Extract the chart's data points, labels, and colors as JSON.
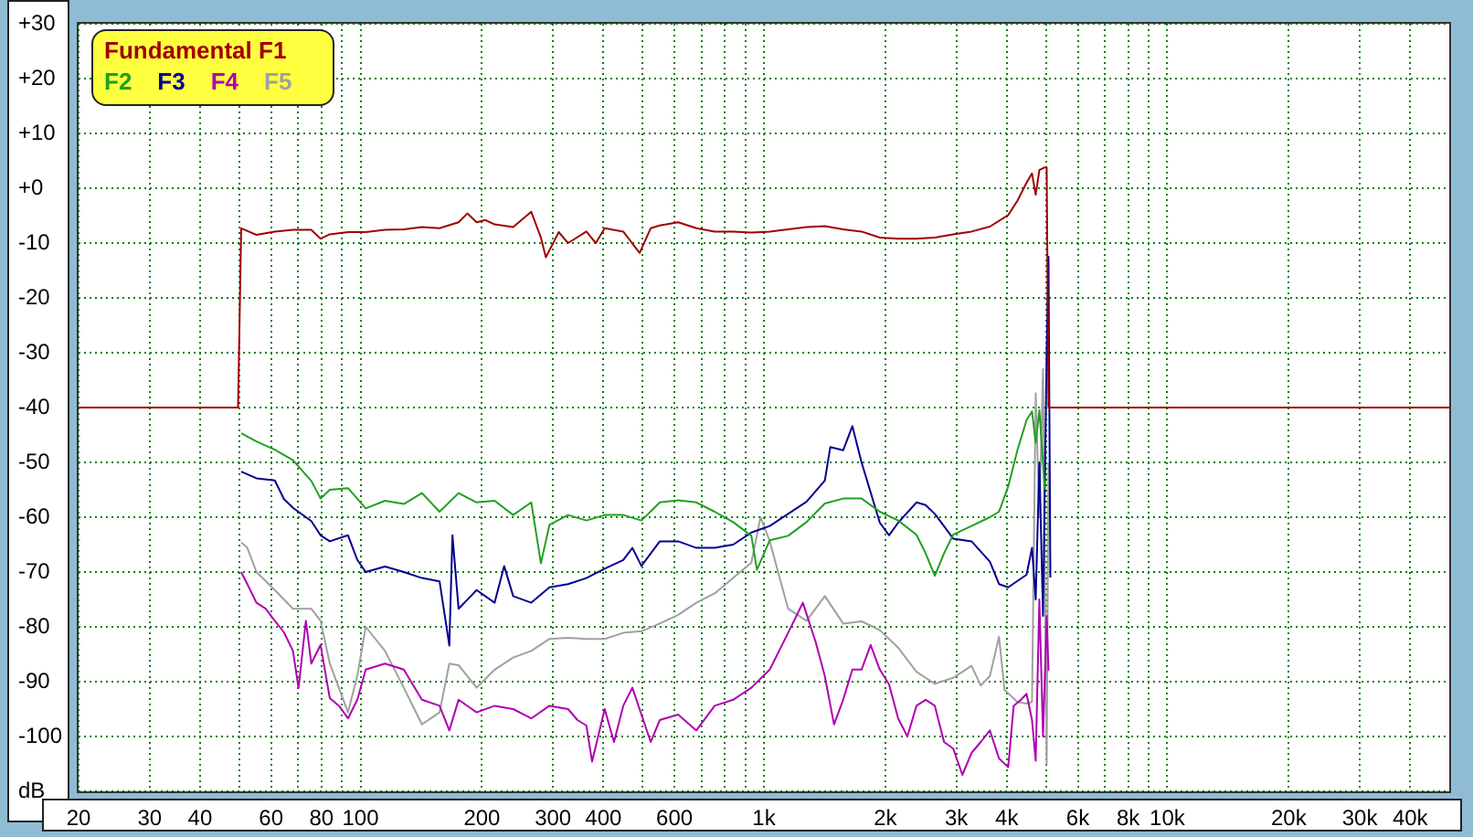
{
  "chart_data": {
    "type": "line",
    "log": "x",
    "grid": true,
    "legend": "top left",
    "marker": "none",
    "line_style": "solid",
    "xlim": [
      20,
      50000
    ],
    "xticks": [
      20,
      30,
      40,
      {
        "value": 50,
        "label": null
      },
      60,
      {
        "value": 70,
        "label": null
      },
      80,
      {
        "value": 90,
        "label": null
      },
      100,
      200,
      300,
      400,
      {
        "value": 500,
        "label": null
      },
      600,
      {
        "value": 700,
        "label": null
      },
      {
        "value": 800,
        "label": null
      },
      {
        "value": 900,
        "label": null
      },
      {
        "value": 1000,
        "label": "1k"
      },
      {
        "value": 2000,
        "label": "2k"
      },
      {
        "value": 3000,
        "label": "3k"
      },
      {
        "value": 4000,
        "label": "4k"
      },
      {
        "value": 5000,
        "label": null
      },
      {
        "value": 6000,
        "label": "6k"
      },
      {
        "value": 7000,
        "label": null
      },
      {
        "value": 8000,
        "label": "8k"
      },
      {
        "value": 9000,
        "label": null
      },
      {
        "value": 10000,
        "label": "10k"
      },
      {
        "value": 20000,
        "label": "20k"
      },
      {
        "value": 30000,
        "label": "30k"
      },
      {
        "value": 40000,
        "label": "40k"
      }
    ],
    "ylim": [
      -110,
      30
    ],
    "yticks": [
      {
        "value": -110,
        "label": "dB"
      },
      -100,
      -90,
      -80,
      -70,
      -60,
      -50,
      -40,
      -30,
      -20,
      -10,
      {
        "value": 0,
        "label": "+0"
      },
      {
        "value": 10,
        "label": "+10"
      },
      {
        "value": 20,
        "label": "+20"
      },
      {
        "value": 30,
        "label": "+30"
      }
    ],
    "series": [
      {
        "name": "Fundamental F1",
        "color": "#a00000",
        "x": [
          20,
          49.7,
          50.6,
          55.2,
          61.3,
          68,
          75.5,
          79.6,
          83.9,
          93.1,
          103,
          115,
          128,
          142,
          157,
          175,
          184,
          194,
          204,
          215,
          239,
          265,
          280,
          288,
          310,
          327,
          363,
          383,
          403,
          448,
          492,
          524,
          552,
          613,
          680,
          755,
          839,
          931,
          1034,
          1148,
          1275,
          1416,
          1572,
          1746,
          1938,
          2152,
          2389,
          2653,
          2946,
          3271,
          3632,
          4033,
          4250,
          4478,
          4620,
          4718,
          4818,
          4972,
          5023,
          5076,
          50000
        ],
        "values": [
          -40,
          -40,
          -7.3,
          -8.5,
          -7.9,
          -7.6,
          -7.6,
          -9.2,
          -8.4,
          -8,
          -8,
          -7.6,
          -7.5,
          -7.1,
          -7.3,
          -6.2,
          -4.6,
          -6.2,
          -5.8,
          -6.6,
          -7.1,
          -4.3,
          -9,
          -12.6,
          -8,
          -10,
          -7.9,
          -10,
          -7.3,
          -7.9,
          -11.8,
          -7.3,
          -6.8,
          -6.2,
          -7.3,
          -7.9,
          -7.9,
          -8.1,
          -7.9,
          -7.5,
          -7.1,
          -6.9,
          -7.5,
          -7.9,
          -9,
          -9.2,
          -9.2,
          -9,
          -8.4,
          -7.9,
          -7,
          -4.9,
          -2.3,
          1,
          2.7,
          -1.2,
          3.3,
          3.8,
          3.8,
          -40,
          -40
        ]
      },
      {
        "name": "F2",
        "color": "#20a020",
        "x": [
          50.6,
          55.2,
          61.3,
          68,
          75.5,
          79.6,
          83.9,
          93.1,
          103,
          115,
          128,
          142,
          157,
          175,
          194,
          215,
          239,
          265,
          280,
          294,
          327,
          363,
          403,
          448,
          497,
          552,
          613,
          680,
          755,
          839,
          931,
          961,
          1034,
          1148,
          1275,
          1416,
          1572,
          1746,
          1938,
          2152,
          2389,
          2518,
          2653,
          2796,
          2946,
          3271,
          3632,
          3827,
          4033,
          4250,
          4478,
          4620,
          4718,
          4818,
          4972
        ],
        "values": [
          -44.7,
          -46.2,
          -47.7,
          -49.6,
          -53.4,
          -56.6,
          -55,
          -54.7,
          -58.4,
          -57,
          -57.6,
          -55.6,
          -59,
          -55.6,
          -57.3,
          -57,
          -59.6,
          -57.3,
          -68.4,
          -61.4,
          -59.6,
          -60.6,
          -59.6,
          -59.6,
          -60.6,
          -57.3,
          -56.9,
          -57.3,
          -59,
          -60.9,
          -63.4,
          -69.6,
          -64.2,
          -63.4,
          -60.9,
          -57.5,
          -56.6,
          -56.6,
          -59,
          -60.6,
          -63.2,
          -66.6,
          -70.7,
          -66.6,
          -63.2,
          -61.6,
          -60,
          -59,
          -54.4,
          -47.8,
          -42.3,
          -40.7,
          -46.4,
          -40.5,
          -55
        ]
      },
      {
        "name": "F3",
        "color": "#000090",
        "x": [
          50.6,
          55.2,
          61.3,
          64.6,
          68,
          75.5,
          79.6,
          83.9,
          93.1,
          98.2,
          103,
          115,
          128,
          142,
          157,
          166,
          169,
          175,
          194,
          215,
          227,
          239,
          265,
          294,
          327,
          363,
          403,
          448,
          472,
          497,
          552,
          613,
          680,
          755,
          839,
          931,
          1034,
          1148,
          1275,
          1416,
          1461,
          1572,
          1657,
          1746,
          1938,
          2043,
          2152,
          2389,
          2518,
          2653,
          2946,
          3271,
          3632,
          3827,
          4033,
          4478,
          4620,
          4718,
          4818,
          4920,
          5023,
          5076,
          5130
        ],
        "values": [
          -51.7,
          -52.9,
          -53.3,
          -56.7,
          -58.3,
          -60.7,
          -63.3,
          -64.4,
          -63.3,
          -67.8,
          -70,
          -69,
          -70,
          -71.1,
          -71.7,
          -83.4,
          -63.3,
          -76.7,
          -73.3,
          -75.6,
          -68.9,
          -74.4,
          -75.6,
          -72.8,
          -72.2,
          -71.1,
          -69.4,
          -67.8,
          -65.6,
          -68.9,
          -64.4,
          -64.4,
          -65.6,
          -65.6,
          -65,
          -62.8,
          -61.6,
          -59.4,
          -57.2,
          -53.3,
          -47.2,
          -47.8,
          -43.4,
          -50,
          -61,
          -63.3,
          -61,
          -57.3,
          -57.8,
          -59.4,
          -63.9,
          -64.4,
          -68.1,
          -72.2,
          -72.8,
          -70.5,
          -65.6,
          -75,
          -50,
          -78,
          -30,
          -12.5,
          -71
        ]
      },
      {
        "name": "F4",
        "color": "#b000b0",
        "x": [
          50.6,
          52.4,
          55.2,
          58.2,
          61.3,
          64.6,
          68,
          70.2,
          73.2,
          75.5,
          79.6,
          83.9,
          88.4,
          93.1,
          98.2,
          103,
          115,
          128,
          142,
          157,
          166,
          175,
          194,
          215,
          239,
          265,
          294,
          327,
          345,
          363,
          375,
          403,
          425,
          448,
          472,
          497,
          524,
          552,
          613,
          680,
          755,
          839,
          931,
          1034,
          1148,
          1249,
          1344,
          1416,
          1492,
          1572,
          1657,
          1746,
          1839,
          1938,
          2043,
          2152,
          2268,
          2389,
          2518,
          2653,
          2796,
          2946,
          3105,
          3271,
          3447,
          3632,
          3827,
          4033,
          4161,
          4339,
          4478,
          4620,
          4718,
          4818,
          4920,
          5023,
          5076
        ],
        "values": [
          -70,
          -72.2,
          -75.6,
          -76.7,
          -78.9,
          -81,
          -84.4,
          -91.2,
          -78.9,
          -86.7,
          -83.3,
          -93,
          -94.4,
          -96.7,
          -93.3,
          -87.8,
          -86.7,
          -87.8,
          -93.3,
          -94.4,
          -98.9,
          -93.3,
          -95.6,
          -94.4,
          -95,
          -96.7,
          -94.4,
          -95,
          -97,
          -98,
          -104.6,
          -95,
          -101,
          -94.4,
          -91.1,
          -96,
          -101,
          -97,
          -96,
          -98.9,
          -94.4,
          -93.3,
          -91.1,
          -87.8,
          -81.1,
          -75.6,
          -82.8,
          -89,
          -97.8,
          -93.3,
          -87.8,
          -87.8,
          -83.3,
          -87.8,
          -90.5,
          -96.7,
          -100,
          -94.4,
          -93.3,
          -94.4,
          -101,
          -102.2,
          -107,
          -103,
          -101,
          -98.9,
          -104,
          -105.6,
          -94.4,
          -93.3,
          -92.2,
          -97,
          -104.4,
          -75,
          -100,
          -78,
          -88
        ]
      },
      {
        "name": "F5",
        "color": "#a0a0a0",
        "x": [
          50.6,
          52.4,
          55.2,
          61.3,
          68,
          75.5,
          79.6,
          83.9,
          93.1,
          98.2,
          103,
          115,
          128,
          142,
          157,
          166,
          175,
          194,
          215,
          239,
          265,
          294,
          327,
          363,
          403,
          448,
          497,
          552,
          613,
          680,
          755,
          839,
          931,
          981,
          1034,
          1148,
          1275,
          1416,
          1572,
          1746,
          1938,
          2152,
          2389,
          2653,
          2946,
          3271,
          3447,
          3632,
          3827,
          3949,
          4250,
          4478,
          4620,
          4718,
          4818,
          4920,
          5023,
          5076
        ],
        "values": [
          -64.6,
          -65.6,
          -70,
          -73.3,
          -76.7,
          -76.7,
          -78.9,
          -86.7,
          -95.6,
          -88.9,
          -80,
          -84.4,
          -91.1,
          -97.8,
          -95.6,
          -86.7,
          -87,
          -91.1,
          -87.8,
          -85.6,
          -84.4,
          -82.2,
          -82,
          -82.2,
          -82.2,
          -81.1,
          -80.8,
          -79.4,
          -77.8,
          -75.6,
          -73.9,
          -71.1,
          -68.3,
          -60,
          -64.4,
          -76.7,
          -78.9,
          -74.4,
          -79.4,
          -79,
          -80.6,
          -83.8,
          -88.2,
          -90.4,
          -89.3,
          -87.1,
          -90.7,
          -89,
          -81.8,
          -91.5,
          -93.7,
          -94,
          -93.7,
          -37.4,
          -60,
          -33,
          -105,
          -50
        ]
      }
    ]
  }
}
